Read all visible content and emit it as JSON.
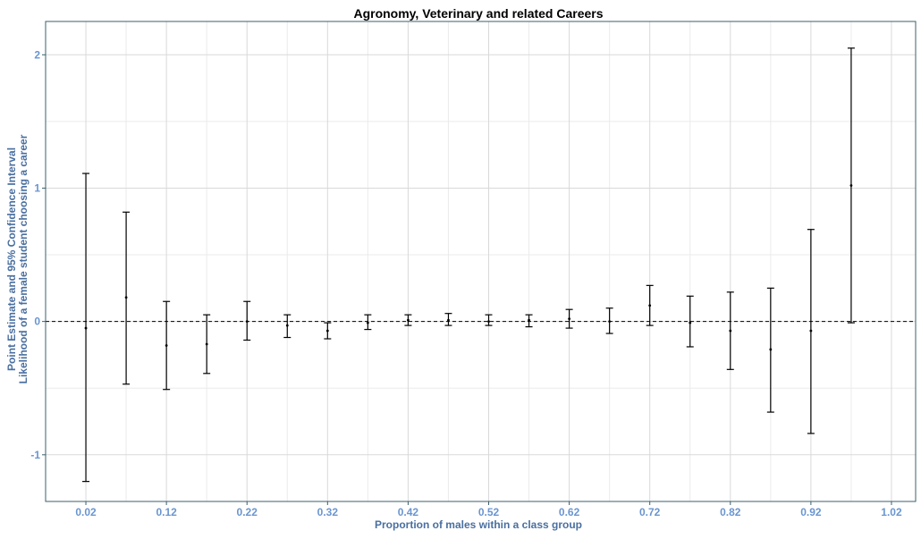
{
  "chart_data": {
    "type": "errorbar",
    "title": "Agronomy, Veterinary and related Careers",
    "xlabel": "Proportion of males within a class group",
    "ylabel_lines": [
      "Point Estimate and 95% Confidence Interval",
      "Likelihood of a female student choosing a career"
    ],
    "xlim": [
      -0.03,
      1.05
    ],
    "ylim": [
      -1.35,
      2.25
    ],
    "x_ticks": [
      0.02,
      0.12,
      0.22,
      0.32,
      0.42,
      0.52,
      0.62,
      0.72,
      0.82,
      0.92,
      1.02
    ],
    "x_tick_labels": [
      "0.02",
      "0.12",
      "0.22",
      "0.32",
      "0.42",
      "0.52",
      "0.62",
      "0.72",
      "0.82",
      "0.92",
      "1.02"
    ],
    "y_ticks": [
      -1,
      0,
      1,
      2
    ],
    "y_tick_labels": [
      "-1",
      "0",
      "1",
      "2"
    ],
    "reference_line": {
      "y": 0,
      "style": "dashed"
    },
    "grid": true,
    "points": [
      {
        "x": 0.02,
        "estimate": -0.05,
        "lower": -1.2,
        "upper": 1.11
      },
      {
        "x": 0.07,
        "estimate": 0.18,
        "lower": -0.47,
        "upper": 0.82
      },
      {
        "x": 0.12,
        "estimate": -0.18,
        "lower": -0.51,
        "upper": 0.15
      },
      {
        "x": 0.17,
        "estimate": -0.17,
        "lower": -0.39,
        "upper": 0.05
      },
      {
        "x": 0.22,
        "estimate": 0.0,
        "lower": -0.14,
        "upper": 0.15
      },
      {
        "x": 0.27,
        "estimate": -0.03,
        "lower": -0.12,
        "upper": 0.05
      },
      {
        "x": 0.32,
        "estimate": -0.07,
        "lower": -0.13,
        "upper": -0.01
      },
      {
        "x": 0.37,
        "estimate": -0.01,
        "lower": -0.06,
        "upper": 0.05
      },
      {
        "x": 0.42,
        "estimate": 0.01,
        "lower": -0.03,
        "upper": 0.05
      },
      {
        "x": 0.47,
        "estimate": 0.01,
        "lower": -0.03,
        "upper": 0.06
      },
      {
        "x": 0.52,
        "estimate": 0.0,
        "lower": -0.03,
        "upper": 0.05
      },
      {
        "x": 0.57,
        "estimate": 0.01,
        "lower": -0.04,
        "upper": 0.05
      },
      {
        "x": 0.62,
        "estimate": 0.02,
        "lower": -0.05,
        "upper": 0.09
      },
      {
        "x": 0.67,
        "estimate": 0.0,
        "lower": -0.09,
        "upper": 0.1
      },
      {
        "x": 0.72,
        "estimate": 0.12,
        "lower": -0.03,
        "upper": 0.27
      },
      {
        "x": 0.77,
        "estimate": -0.01,
        "lower": -0.19,
        "upper": 0.19
      },
      {
        "x": 0.82,
        "estimate": -0.07,
        "lower": -0.36,
        "upper": 0.22
      },
      {
        "x": 0.87,
        "estimate": -0.21,
        "lower": -0.68,
        "upper": 0.25
      },
      {
        "x": 0.92,
        "estimate": -0.07,
        "lower": -0.84,
        "upper": 0.69
      },
      {
        "x": 0.97,
        "estimate": 1.02,
        "lower": -0.01,
        "upper": 2.05
      }
    ]
  }
}
